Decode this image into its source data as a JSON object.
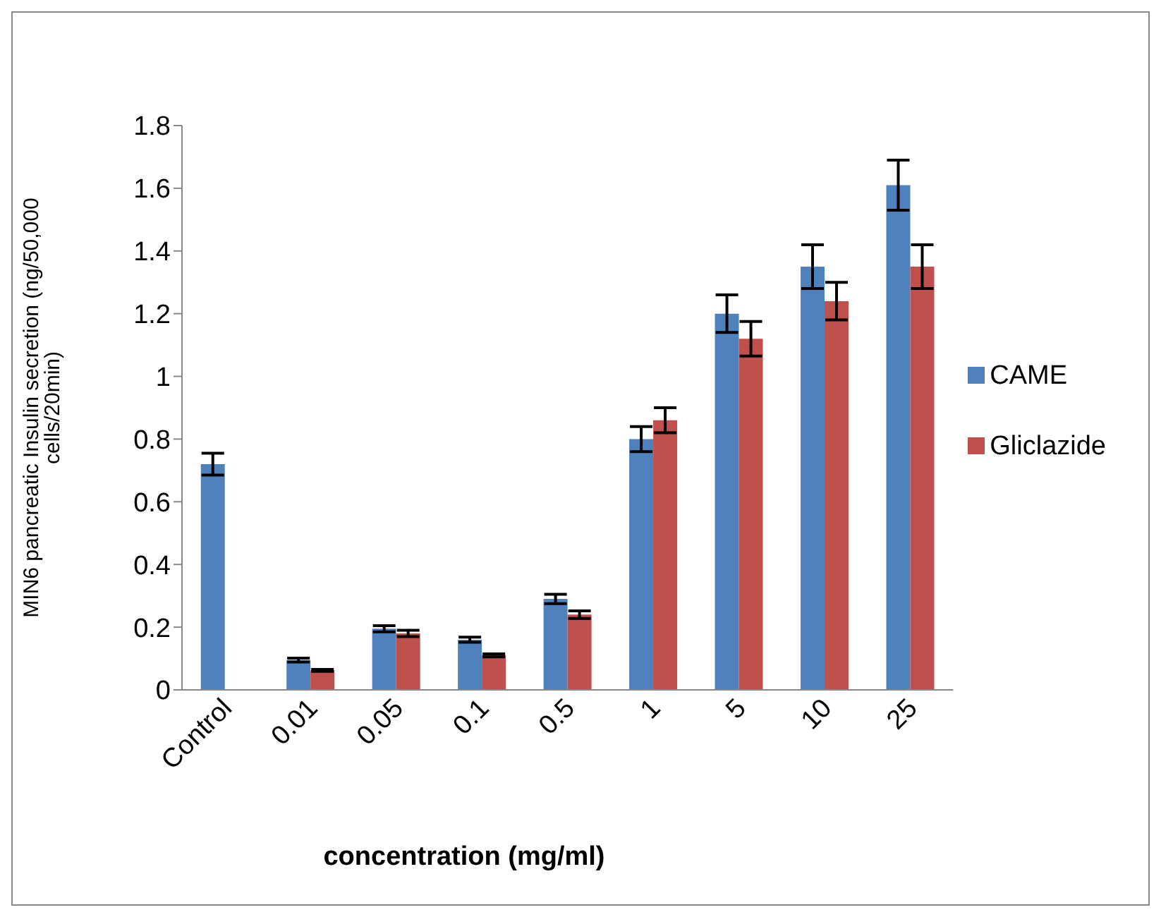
{
  "chart_data": {
    "type": "bar",
    "xlabel": "concentration (mg/ml)",
    "ylabel": "MIN6 pancreatic Insulin secretion (ng/50,000 cells/20min)",
    "categories": [
      "Control",
      "0.01",
      "0.05",
      "0.1",
      "0.5",
      "1",
      "5",
      "10",
      "25"
    ],
    "series": [
      {
        "name": "CAME",
        "color": "#4f81bd",
        "values": [
          0.72,
          0.095,
          0.195,
          0.16,
          0.29,
          0.8,
          1.2,
          1.35,
          1.61
        ],
        "errors": [
          0.035,
          0.006,
          0.01,
          0.008,
          0.015,
          0.04,
          0.06,
          0.07,
          0.08
        ]
      },
      {
        "name": "Gliclazide",
        "color": "#c0504d",
        "values": [
          null,
          0.062,
          0.18,
          0.11,
          0.24,
          0.86,
          1.12,
          1.24,
          1.35
        ],
        "errors": [
          null,
          0.003,
          0.01,
          0.005,
          0.012,
          0.04,
          0.055,
          0.06,
          0.07
        ]
      }
    ],
    "ylim": [
      0,
      1.8
    ],
    "yticks": [
      0,
      0.2,
      0.4,
      0.6,
      0.8,
      1,
      1.2,
      1.4,
      1.6,
      1.8
    ],
    "grid": false,
    "legend": "right"
  }
}
